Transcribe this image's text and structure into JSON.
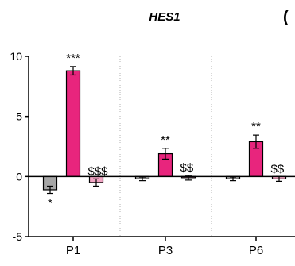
{
  "chart_data": {
    "type": "bar",
    "title": "HES1",
    "panel_label": "(",
    "categories": [
      "P1",
      "P3",
      "P6"
    ],
    "ylim": [
      -5,
      10
    ],
    "yticks": [
      -5,
      0,
      5,
      10
    ],
    "ytick_labels": [
      "-5",
      "0",
      "5",
      "10"
    ],
    "xlabel": "",
    "ylabel": "",
    "grid": "vertical dotted separators between groups",
    "series": [
      {
        "color": "#a6a6a6",
        "values": [
          -1.1,
          -0.2,
          -0.2
        ],
        "errors": [
          0.3,
          0.15,
          0.15
        ],
        "annotations": [
          "*",
          "",
          ""
        ]
      },
      {
        "color": "#e8257d",
        "values": [
          8.8,
          1.9,
          2.9
        ],
        "errors": [
          0.35,
          0.45,
          0.55
        ],
        "annotations": [
          "***",
          "**",
          "**"
        ]
      },
      {
        "color": "#f2a6c4",
        "values": [
          -0.5,
          -0.1,
          -0.2
        ],
        "errors": [
          0.3,
          0.2,
          0.2
        ],
        "annotations": [
          "$$$",
          "$$",
          "$$"
        ]
      }
    ]
  }
}
